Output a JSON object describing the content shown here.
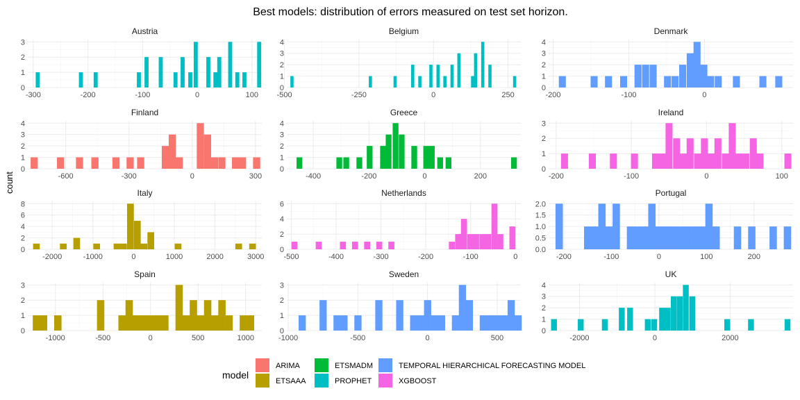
{
  "chart_data": {
    "type": "bar",
    "title": "Best models: distribution of errors measured on test set horizon.",
    "ylabel": "count",
    "xlabel": "",
    "legend": {
      "title": "model",
      "position": "bottom",
      "entries": [
        {
          "name": "ARIMA",
          "color": "#F8766D"
        },
        {
          "name": "ETSAAA",
          "color": "#B79F00"
        },
        {
          "name": "ETSMADM",
          "color": "#00BA38"
        },
        {
          "name": "PROPHET",
          "color": "#00BFC4"
        },
        {
          "name": "TEMPORAL HIERARCHICAL FORECASTING MODEL",
          "color": "#619CFF"
        },
        {
          "name": "XGBOOST",
          "color": "#F564E3"
        }
      ]
    },
    "panels": [
      {
        "country": "Austria",
        "model": "PROPHET",
        "xlim": [
          -310,
          118
        ],
        "ylim": [
          0,
          3.15
        ],
        "xticks": [
          -300,
          -200,
          -100,
          0,
          100
        ],
        "yticks": [
          0,
          1,
          2,
          3
        ],
        "bars": [
          [
            -292,
            1
          ],
          [
            -213,
            1
          ],
          [
            -186,
            1
          ],
          [
            -107,
            1
          ],
          [
            -93,
            2
          ],
          [
            -67,
            2
          ],
          [
            -40,
            1
          ],
          [
            -27,
            2
          ],
          [
            -13,
            1
          ],
          [
            -3,
            3
          ],
          [
            20,
            2
          ],
          [
            33,
            1
          ],
          [
            40,
            2
          ],
          [
            60,
            3
          ],
          [
            73,
            1
          ],
          [
            86,
            1
          ],
          [
            113,
            3
          ]
        ]
      },
      {
        "country": "Belgium",
        "model": "PROPHET",
        "xlim": [
          -492,
          293
        ],
        "ylim": [
          0,
          4.2
        ],
        "xticks": [
          -500,
          -250,
          0,
          250
        ],
        "yticks": [
          0,
          1,
          2,
          3,
          4
        ],
        "bars": [
          [
            -475,
            1
          ],
          [
            -212,
            1
          ],
          [
            -129,
            1
          ],
          [
            -70,
            2
          ],
          [
            -46,
            1
          ],
          [
            -9,
            2
          ],
          [
            15,
            2
          ],
          [
            38,
            1
          ],
          [
            62,
            2
          ],
          [
            85,
            3
          ],
          [
            131,
            1
          ],
          [
            141,
            3
          ],
          [
            165,
            4
          ],
          [
            189,
            2
          ],
          [
            272,
            1
          ]
        ]
      },
      {
        "country": "Denmark",
        "model": "TEMPORAL HIERARCHICAL FORECASTING MODEL",
        "xlim": [
          -206,
          117
        ],
        "ylim": [
          0,
          4.2
        ],
        "xticks": [
          -200,
          -100,
          0
        ],
        "yticks": [
          0,
          1,
          2,
          3,
          4
        ],
        "bars": [
          [
            -188,
            1
          ],
          [
            -146,
            1
          ],
          [
            -127,
            1
          ],
          [
            -107,
            1
          ],
          [
            -88,
            2
          ],
          [
            -78,
            2
          ],
          [
            -68,
            2
          ],
          [
            -49,
            1
          ],
          [
            -39,
            1
          ],
          [
            -29,
            2
          ],
          [
            -19,
            3
          ],
          [
            -10,
            4
          ],
          [
            -1,
            2
          ],
          [
            8,
            1
          ],
          [
            18,
            1
          ],
          [
            42,
            1
          ],
          [
            77,
            1
          ],
          [
            98,
            1
          ]
        ]
      },
      {
        "country": "Finland",
        "model": "ARIMA",
        "xlim": [
          -780,
          330
        ],
        "ylim": [
          0,
          4.2
        ],
        "xticks": [
          -600,
          -300,
          0,
          300
        ],
        "yticks": [
          0,
          1,
          2,
          3,
          4
        ],
        "bars": [
          [
            -750,
            1
          ],
          [
            -625,
            1
          ],
          [
            -535,
            1
          ],
          [
            -462,
            1
          ],
          [
            -362,
            1
          ],
          [
            -295,
            1
          ],
          [
            -245,
            1
          ],
          [
            -128,
            2
          ],
          [
            -95,
            3
          ],
          [
            -62,
            1
          ],
          [
            38,
            4
          ],
          [
            72,
            3
          ],
          [
            105,
            1
          ],
          [
            140,
            1
          ],
          [
            205,
            1
          ],
          [
            238,
            1
          ],
          [
            305,
            1
          ]
        ]
      },
      {
        "country": "Greece",
        "model": "ETSMADM",
        "xlim": [
          -495,
          345
        ],
        "ylim": [
          0,
          4.2
        ],
        "xticks": [
          -400,
          -200,
          0,
          200
        ],
        "yticks": [
          0,
          1,
          2,
          3,
          4
        ],
        "bars": [
          [
            -450,
            1
          ],
          [
            -307,
            1
          ],
          [
            -282,
            1
          ],
          [
            -235,
            1
          ],
          [
            -198,
            2
          ],
          [
            -150,
            2
          ],
          [
            -130,
            3
          ],
          [
            -105,
            4
          ],
          [
            -83,
            3
          ],
          [
            -38,
            2
          ],
          [
            5,
            2
          ],
          [
            25,
            2
          ],
          [
            55,
            1
          ],
          [
            85,
            1
          ],
          [
            320,
            1
          ]
        ]
      },
      {
        "country": "Ireland",
        "model": "XGBOOST",
        "xlim": [
          -210,
          115
        ],
        "ylim": [
          0,
          3.15
        ],
        "xticks": [
          -200,
          -100,
          0,
          100
        ],
        "yticks": [
          0,
          1,
          2,
          3
        ],
        "bars": [
          [
            -189,
            1
          ],
          [
            -152,
            1
          ],
          [
            -124,
            1
          ],
          [
            -96,
            1
          ],
          [
            -68,
            1
          ],
          [
            -59,
            1
          ],
          [
            -50,
            3
          ],
          [
            -40,
            2
          ],
          [
            -31,
            1
          ],
          [
            -22,
            2
          ],
          [
            -12,
            1
          ],
          [
            -3,
            2
          ],
          [
            6,
            1
          ],
          [
            15,
            2
          ],
          [
            25,
            1
          ],
          [
            34,
            3
          ],
          [
            43,
            1
          ],
          [
            52,
            1
          ],
          [
            62,
            2
          ],
          [
            71,
            1
          ],
          [
            108,
            1
          ]
        ]
      },
      {
        "country": "Italy",
        "model": "ETSAAA",
        "xlim": [
          -2600,
          3150
        ],
        "ylim": [
          0,
          8.4
        ],
        "xticks": [
          -2000,
          -1000,
          0,
          1000,
          2000,
          3000
        ],
        "yticks": [
          0,
          2,
          4,
          6,
          8
        ],
        "bars": [
          [
            -2390,
            1
          ],
          [
            -1730,
            1
          ],
          [
            -1400,
            2
          ],
          [
            -910,
            1
          ],
          [
            -410,
            1
          ],
          [
            -250,
            1
          ],
          [
            -80,
            8
          ],
          [
            90,
            5
          ],
          [
            250,
            1
          ],
          [
            420,
            3
          ],
          [
            1090,
            1
          ],
          [
            2580,
            1
          ],
          [
            2920,
            1
          ]
        ]
      },
      {
        "country": "Netherlands",
        "model": "XGBOOST",
        "xlim": [
          -510,
          12
        ],
        "ylim": [
          0,
          6.3
        ],
        "xticks": [
          -500,
          -400,
          -300,
          -200,
          -100,
          0
        ],
        "yticks": [
          0,
          2,
          4,
          6
        ],
        "bars": [
          [
            -493,
            1
          ],
          [
            -439,
            1
          ],
          [
            -385,
            1
          ],
          [
            -358,
            1
          ],
          [
            -331,
            1
          ],
          [
            -304,
            1
          ],
          [
            -277,
            1
          ],
          [
            -142,
            1
          ],
          [
            -128,
            2
          ],
          [
            -115,
            4
          ],
          [
            -101,
            2
          ],
          [
            -88,
            2
          ],
          [
            -74,
            2
          ],
          [
            -61,
            2
          ],
          [
            -47,
            6
          ],
          [
            -34,
            2
          ],
          [
            -7,
            3
          ]
        ]
      },
      {
        "country": "Portugal",
        "model": "TEMPORAL HIERARCHICAL FORECASTING MODEL",
        "xlim": [
          -232,
          282
        ],
        "ylim": [
          0,
          2.1
        ],
        "xticks": [
          -200,
          -100,
          0,
          100,
          200
        ],
        "yticks": [
          0,
          0.5,
          1.0,
          1.5,
          2.0
        ],
        "yticklabels": [
          "0.0",
          "0.5",
          "1.0",
          "1.5",
          "2.0"
        ],
        "bars": [
          [
            -210,
            2
          ],
          [
            -150,
            1
          ],
          [
            -135,
            1
          ],
          [
            -120,
            2
          ],
          [
            -105,
            1
          ],
          [
            -90,
            2
          ],
          [
            -60,
            1
          ],
          [
            -45,
            1
          ],
          [
            -30,
            1
          ],
          [
            -15,
            2
          ],
          [
            0,
            1
          ],
          [
            15,
            1
          ],
          [
            30,
            1
          ],
          [
            45,
            1
          ],
          [
            60,
            1
          ],
          [
            75,
            1
          ],
          [
            90,
            1
          ],
          [
            105,
            2
          ],
          [
            120,
            1
          ],
          [
            165,
            1
          ],
          [
            195,
            1
          ],
          [
            240,
            1
          ],
          [
            270,
            1
          ]
        ]
      },
      {
        "country": "Spain",
        "model": "ETSAAA",
        "xlim": [
          -1290,
          1170
        ],
        "ylim": [
          0,
          3.15
        ],
        "xticks": [
          -1000,
          -500,
          0,
          500,
          1000
        ],
        "yticks": [
          0,
          1,
          2,
          3
        ],
        "bars": [
          [
            -1200,
            1
          ],
          [
            -1125,
            1
          ],
          [
            -975,
            1
          ],
          [
            -525,
            2
          ],
          [
            -300,
            1
          ],
          [
            -225,
            2
          ],
          [
            -150,
            1
          ],
          [
            -75,
            1
          ],
          [
            0,
            1
          ],
          [
            75,
            1
          ],
          [
            150,
            1
          ],
          [
            300,
            3
          ],
          [
            375,
            1
          ],
          [
            450,
            2
          ],
          [
            525,
            1
          ],
          [
            600,
            2
          ],
          [
            675,
            1
          ],
          [
            750,
            2
          ],
          [
            825,
            1
          ],
          [
            975,
            1
          ],
          [
            1050,
            1
          ]
        ]
      },
      {
        "country": "Sweden",
        "model": "TEMPORAL HIERARCHICAL FORECASTING MODEL",
        "xlim": [
          -1010,
          670
        ],
        "ylim": [
          0,
          3.15
        ],
        "xticks": [
          -1000,
          -500,
          0,
          500
        ],
        "yticks": [
          0,
          1,
          2,
          3
        ],
        "bars": [
          [
            -900,
            1
          ],
          [
            -750,
            2
          ],
          [
            -650,
            1
          ],
          [
            -600,
            1
          ],
          [
            -500,
            1
          ],
          [
            -350,
            2
          ],
          [
            -200,
            2
          ],
          [
            -100,
            1
          ],
          [
            -50,
            1
          ],
          [
            0,
            2
          ],
          [
            50,
            1
          ],
          [
            100,
            1
          ],
          [
            200,
            1
          ],
          [
            250,
            3
          ],
          [
            300,
            2
          ],
          [
            400,
            1
          ],
          [
            450,
            1
          ],
          [
            500,
            1
          ],
          [
            550,
            1
          ],
          [
            600,
            2
          ],
          [
            650,
            1
          ]
        ]
      },
      {
        "country": "UK",
        "model": "PROPHET",
        "xlim": [
          -2820,
          3670
        ],
        "ylim": [
          0,
          4.2
        ],
        "xticks": [
          -2000,
          0,
          2000
        ],
        "yticks": [
          0,
          1,
          2,
          3,
          4
        ],
        "bars": [
          [
            -2680,
            1
          ],
          [
            -1970,
            1
          ],
          [
            -1330,
            1
          ],
          [
            -880,
            2
          ],
          [
            -660,
            2
          ],
          [
            -190,
            1
          ],
          [
            -20,
            1
          ],
          [
            190,
            2
          ],
          [
            340,
            2
          ],
          [
            500,
            3
          ],
          [
            660,
            3
          ],
          [
            820,
            4
          ],
          [
            990,
            3
          ],
          [
            1920,
            1
          ],
          [
            2550,
            1
          ],
          [
            3520,
            1
          ]
        ]
      }
    ]
  }
}
